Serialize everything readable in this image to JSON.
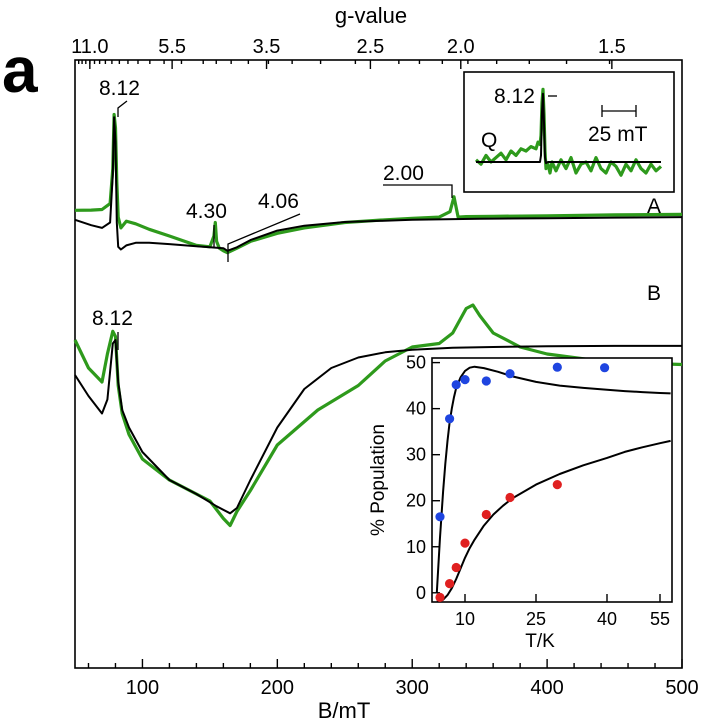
{
  "panel_label": "a",
  "chart_data": [
    {
      "type": "line",
      "title": "",
      "xlabel": "B/mT",
      "x2label": "g-value",
      "xlim": [
        50,
        500
      ],
      "xticks": [
        100,
        200,
        300,
        400,
        500
      ],
      "x2ticks": [
        {
          "label": "11.0",
          "b": 61
        },
        {
          "label": "5.5",
          "b": 122
        },
        {
          "label": "3.5",
          "b": 192
        },
        {
          "label": "2.5",
          "b": 269
        },
        {
          "label": "2.0",
          "b": 336
        },
        {
          "label": "1.5",
          "b": 448
        }
      ],
      "series": [
        {
          "name": "A",
          "label_b": 493,
          "exp": {
            "x": [
              50,
              62,
              70,
              76,
              78,
              79,
              80,
              81,
              82,
              84,
              88,
              95,
              105,
              120,
              140,
              150,
              153,
              154,
              155,
              157,
              160,
              163,
              170,
              180,
              200,
              220,
              250,
              280,
              300,
              320,
              328,
              331,
              334,
              340,
              360,
              400,
              450,
              500
            ],
            "y": [
              0.95,
              0.96,
              0.98,
              1.2,
              2.5,
              4.5,
              4.0,
              2.0,
              0.7,
              0.3,
              0.55,
              0.45,
              0.25,
              0.0,
              -0.35,
              -0.4,
              0.0,
              0.5,
              -0.2,
              -0.45,
              -0.55,
              -0.62,
              -0.45,
              -0.2,
              0.1,
              0.3,
              0.5,
              0.6,
              0.65,
              0.7,
              0.9,
              1.45,
              0.7,
              0.72,
              0.73,
              0.75,
              0.78,
              0.8
            ]
          },
          "sim": {
            "x": [
              50,
              62,
              70,
              76,
              78,
              79,
              80,
              81,
              82,
              84,
              88,
              95,
              105,
              120,
              140,
              160,
              163,
              170,
              180,
              200,
              220,
              250,
              300,
              350,
              400,
              450,
              500
            ],
            "y": [
              0.6,
              0.4,
              0.3,
              0.5,
              2.3,
              4.4,
              3.5,
              0.5,
              -0.4,
              -0.5,
              -0.35,
              -0.25,
              -0.25,
              -0.3,
              -0.38,
              -0.45,
              -0.55,
              -0.42,
              -0.15,
              0.2,
              0.38,
              0.52,
              0.6,
              0.64,
              0.66,
              0.68,
              0.7
            ]
          }
        },
        {
          "name": "B",
          "label_b": 493,
          "exp": {
            "x": [
              50,
              60,
              70,
              74,
              78,
              80,
              82,
              85,
              90,
              100,
              120,
              140,
              150,
              160,
              165,
              170,
              175,
              180,
              200,
              230,
              260,
              280,
              300,
              320,
              330,
              340,
              345,
              350,
              360,
              380,
              400,
              430,
              460,
              500
            ],
            "y": [
              1.0,
              0.2,
              -0.2,
              0.6,
              1.25,
              1.1,
              -0.3,
              -1.1,
              -1.7,
              -2.4,
              -3.0,
              -3.4,
              -3.6,
              -4.1,
              -4.3,
              -3.9,
              -3.6,
              -3.3,
              -2.0,
              -1.0,
              -0.3,
              0.4,
              0.8,
              0.9,
              1.2,
              1.9,
              2.0,
              1.7,
              1.2,
              0.8,
              0.6,
              0.45,
              0.35,
              0.3
            ]
          },
          "sim": {
            "x": [
              50,
              60,
              70,
              74,
              78,
              80,
              82,
              85,
              90,
              100,
              120,
              140,
              155,
              165,
              170,
              180,
              200,
              220,
              240,
              260,
              280,
              300,
              330,
              360,
              400,
              450,
              500
            ],
            "y": [
              0.0,
              -0.6,
              -1.1,
              -0.7,
              0.9,
              1.0,
              -0.2,
              -1.0,
              -1.5,
              -2.2,
              -3.0,
              -3.4,
              -3.75,
              -3.95,
              -3.8,
              -3.0,
              -1.5,
              -0.4,
              0.2,
              0.5,
              0.65,
              0.72,
              0.78,
              0.8,
              0.82,
              0.83,
              0.83
            ]
          }
        }
      ],
      "annotations": [
        "8.12",
        "4.30",
        "4.06",
        "2.00",
        "8.12"
      ]
    },
    {
      "type": "line",
      "title": "",
      "label": "Q",
      "peak_label": "8.12",
      "scale_label": "25 mT",
      "exp": {
        "x": [
          0,
          5,
          10,
          15,
          20,
          25,
          30,
          35,
          40,
          45,
          50,
          55,
          60,
          62,
          64,
          65,
          66,
          67,
          68,
          69,
          70,
          72,
          74,
          76,
          78,
          80,
          85,
          90,
          95,
          100,
          105,
          110,
          115,
          120,
          125,
          130,
          135,
          140,
          145,
          150,
          155,
          160,
          165,
          170,
          175,
          180,
          185
        ],
        "y": [
          0.1,
          -0.1,
          0.3,
          0.0,
          0.2,
          0.4,
          0.1,
          0.5,
          0.3,
          0.6,
          0.5,
          0.7,
          0.6,
          0.9,
          0.8,
          1.2,
          2.7,
          3.3,
          2.2,
          0.5,
          -0.3,
          -0.1,
          -0.5,
          0.0,
          -0.2,
          -0.4,
          0.1,
          -0.3,
          0.2,
          -0.5,
          -0.1,
          0.0,
          -0.4,
          0.2,
          -0.3,
          -0.5,
          0.0,
          -0.2,
          -0.6,
          -0.1,
          -0.4,
          0.1,
          -0.3,
          -0.5,
          -0.1,
          -0.4,
          -0.2
        ]
      },
      "sim": {
        "x": [
          0,
          60,
          64,
          65,
          66,
          67,
          68,
          69,
          70,
          72,
          185
        ],
        "y": [
          0.0,
          0.0,
          0.0,
          0.3,
          2.3,
          3.1,
          1.8,
          0.2,
          -0.05,
          0.0,
          0.0
        ]
      }
    },
    {
      "type": "scatter",
      "title": "",
      "xlabel": "T/K",
      "ylabel": "% Population",
      "xticks": [
        10,
        25,
        40,
        55
      ],
      "yticks": [
        0,
        10,
        20,
        30,
        40,
        50
      ],
      "ylim": [
        -2,
        51
      ],
      "series": [
        {
          "color": "#1f45e0",
          "x": [
            4.3,
            6.5,
            8.0,
            10.0,
            14.5,
            19.5,
            29.5,
            39.5
          ],
          "y": [
            16.5,
            37.8,
            45.2,
            46.3,
            46.0,
            47.6,
            49.0,
            48.9
          ]
        },
        {
          "color": "#e02020",
          "x": [
            4.3,
            6.5,
            8.0,
            10.0,
            14.5,
            19.5,
            29.5
          ],
          "y": [
            -1.0,
            2.0,
            5.5,
            10.8,
            17.0,
            20.7,
            23.5
          ]
        }
      ],
      "fits": [
        {
          "x": [
            3.5,
            4.3,
            5.0,
            5.5,
            6.0,
            6.5,
            7.0,
            7.5,
            8.0,
            9.0,
            10.0,
            11.0,
            12.0,
            14.0,
            17.0,
            20.0,
            25.0,
            30.0,
            35.0,
            40.0,
            45.0,
            50.0,
            55.0,
            58.0
          ],
          "y": [
            0.0,
            12.0,
            22.0,
            28.0,
            33.0,
            37.0,
            40.0,
            42.5,
            44.5,
            46.8,
            48.2,
            48.9,
            49.1,
            48.8,
            48.0,
            47.0,
            45.8,
            45.0,
            44.5,
            44.1,
            43.8,
            43.6,
            43.4,
            43.3
          ]
        },
        {
          "x": [
            3.5,
            4.3,
            5.0,
            6.0,
            7.0,
            8.0,
            9.0,
            10.0,
            11.0,
            12.0,
            14.0,
            16.0,
            18.0,
            20.0,
            25.0,
            30.0,
            35.0,
            40.0,
            45.0,
            50.0,
            55.0,
            58.0
          ],
          "y": [
            -1.9,
            -1.8,
            -1.5,
            -0.5,
            1.0,
            3.0,
            5.3,
            7.6,
            9.7,
            11.5,
            14.6,
            17.0,
            18.9,
            20.5,
            23.5,
            25.8,
            27.7,
            29.3,
            30.6,
            31.6,
            32.5,
            33.0
          ]
        }
      ]
    }
  ]
}
